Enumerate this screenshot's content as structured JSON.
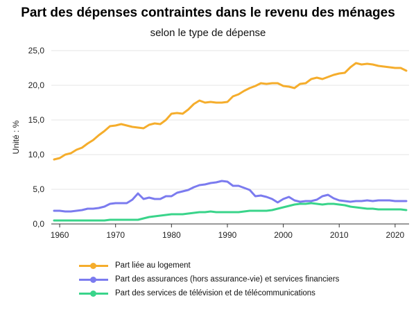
{
  "title": "Part des dépenses contraintes dans le revenu des ménages",
  "subtitle": "selon le type de dépense",
  "chart_data": {
    "type": "line",
    "title": "Part des dépenses contraintes dans le revenu des ménages",
    "subtitle": "selon le type de dépense",
    "xlabel": "",
    "ylabel": "Unité : %",
    "xlim": [
      1959,
      2022
    ],
    "ylim": [
      0,
      25
    ],
    "x_ticks": [
      1960,
      1970,
      1980,
      1990,
      2000,
      2010,
      2020
    ],
    "y_ticks": [
      0,
      5,
      10,
      15,
      20,
      25
    ],
    "y_tick_labels": [
      "0,0",
      "5,0",
      "10,0",
      "15,0",
      "20,0",
      "25,0"
    ],
    "grid": "horizontal",
    "legend_position": "bottom-left",
    "x": [
      1959,
      1960,
      1961,
      1962,
      1963,
      1964,
      1965,
      1966,
      1967,
      1968,
      1969,
      1970,
      1971,
      1972,
      1973,
      1974,
      1975,
      1976,
      1977,
      1978,
      1979,
      1980,
      1981,
      1982,
      1983,
      1984,
      1985,
      1986,
      1987,
      1988,
      1989,
      1990,
      1991,
      1992,
      1993,
      1994,
      1995,
      1996,
      1997,
      1998,
      1999,
      2000,
      2001,
      2002,
      2003,
      2004,
      2005,
      2006,
      2007,
      2008,
      2009,
      2010,
      2011,
      2012,
      2013,
      2014,
      2015,
      2016,
      2017,
      2018,
      2019,
      2020,
      2021,
      2022
    ],
    "series": [
      {
        "name": "Part liée au logement",
        "color": "#f5ad2c",
        "values": [
          9.3,
          9.5,
          10.0,
          10.2,
          10.7,
          11.0,
          11.6,
          12.1,
          12.8,
          13.4,
          14.1,
          14.2,
          14.4,
          14.2,
          14.0,
          13.9,
          13.8,
          14.3,
          14.5,
          14.4,
          15.0,
          15.9,
          16.0,
          15.9,
          16.5,
          17.3,
          17.8,
          17.5,
          17.6,
          17.5,
          17.5,
          17.6,
          18.4,
          18.7,
          19.2,
          19.6,
          19.9,
          20.3,
          20.2,
          20.3,
          20.3,
          19.9,
          19.8,
          19.6,
          20.2,
          20.3,
          20.9,
          21.1,
          20.9,
          21.2,
          21.5,
          21.7,
          21.8,
          22.6,
          23.2,
          23.0,
          23.1,
          23.0,
          22.8,
          22.7,
          22.6,
          22.5,
          22.5,
          22.1
        ]
      },
      {
        "name": "Part des assurances (hors assurance-vie) et services financiers",
        "color": "#7b7bef",
        "values": [
          1.9,
          1.9,
          1.8,
          1.8,
          1.9,
          2.0,
          2.2,
          2.2,
          2.3,
          2.5,
          2.9,
          3.0,
          3.0,
          3.0,
          3.5,
          4.4,
          3.6,
          3.8,
          3.6,
          3.6,
          4.0,
          4.0,
          4.5,
          4.7,
          4.9,
          5.3,
          5.6,
          5.7,
          5.9,
          6.0,
          6.2,
          6.1,
          5.5,
          5.5,
          5.2,
          4.9,
          4.0,
          4.1,
          3.9,
          3.6,
          3.1,
          3.6,
          3.9,
          3.4,
          3.2,
          3.3,
          3.3,
          3.5,
          4.0,
          4.2,
          3.7,
          3.4,
          3.3,
          3.2,
          3.3,
          3.3,
          3.4,
          3.3,
          3.4,
          3.4,
          3.4,
          3.3,
          3.3,
          3.3
        ]
      },
      {
        "name": "Part des services de télévision et de télécommunications",
        "color": "#39d48a",
        "values": [
          0.5,
          0.5,
          0.5,
          0.5,
          0.5,
          0.5,
          0.5,
          0.5,
          0.5,
          0.5,
          0.6,
          0.6,
          0.6,
          0.6,
          0.6,
          0.6,
          0.8,
          1.0,
          1.1,
          1.2,
          1.3,
          1.4,
          1.4,
          1.4,
          1.5,
          1.6,
          1.7,
          1.7,
          1.8,
          1.7,
          1.7,
          1.7,
          1.7,
          1.7,
          1.8,
          1.9,
          1.9,
          1.9,
          1.9,
          2.0,
          2.2,
          2.4,
          2.6,
          2.8,
          2.9,
          2.9,
          3.0,
          2.9,
          2.8,
          2.9,
          2.9,
          2.8,
          2.7,
          2.5,
          2.4,
          2.3,
          2.2,
          2.2,
          2.1,
          2.1,
          2.1,
          2.1,
          2.1,
          2.0
        ]
      }
    ]
  }
}
